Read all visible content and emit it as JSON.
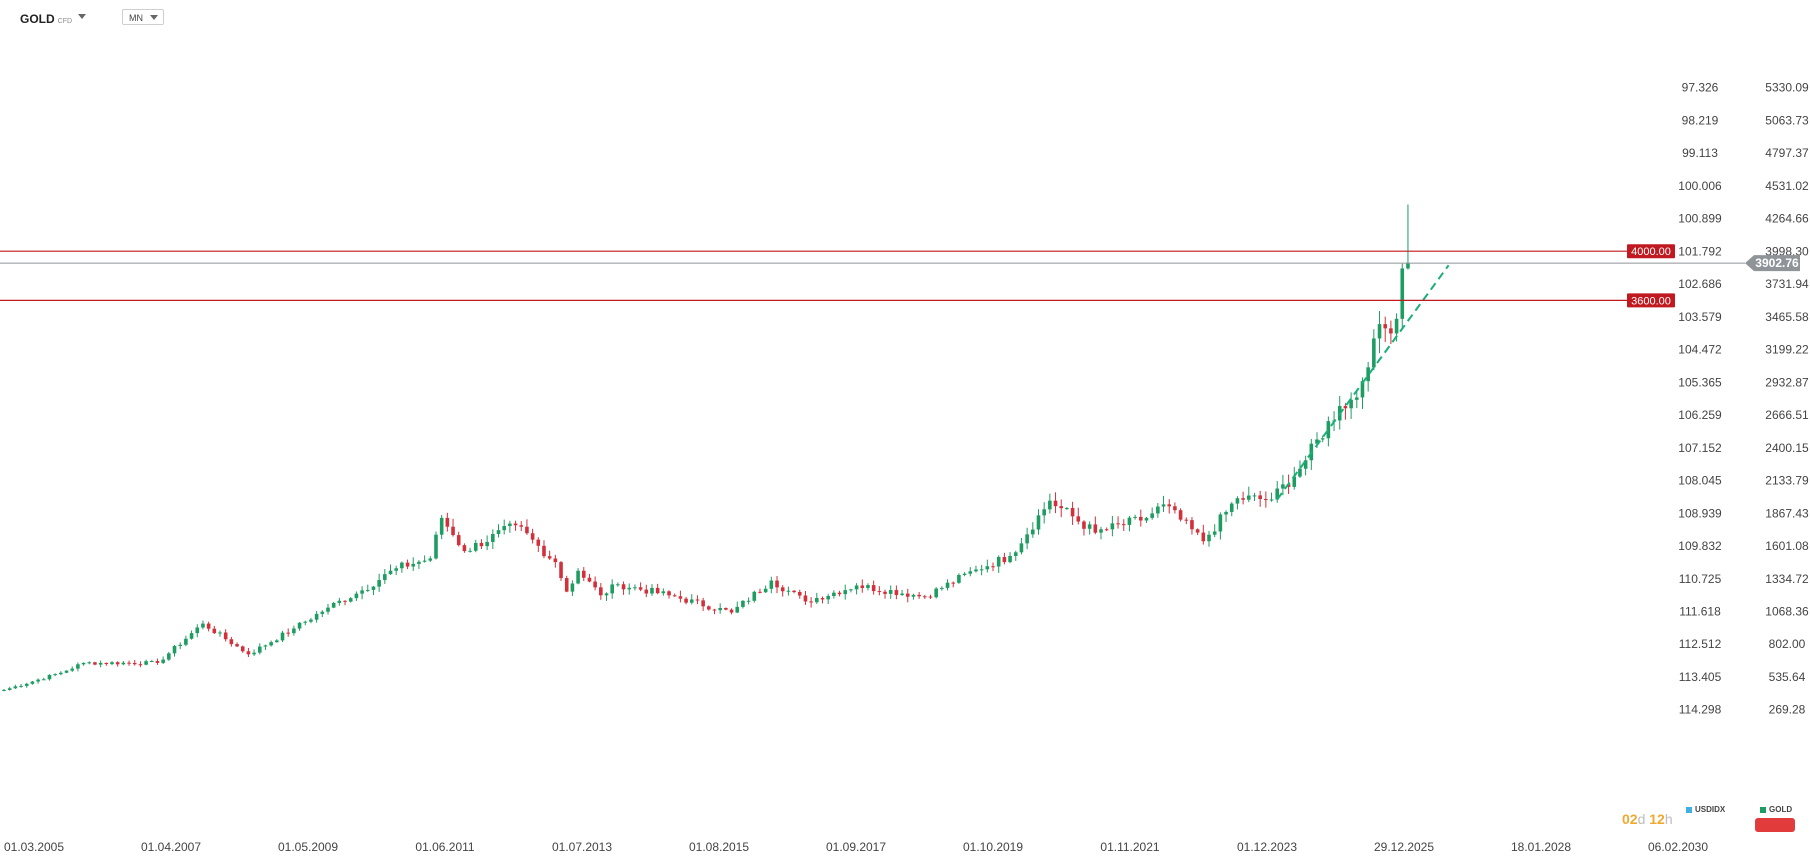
{
  "header": {
    "symbol": "GOLD",
    "symbol_type": "CFD",
    "timeframe": "MN"
  },
  "colors": {
    "up": "#1f9c61",
    "down": "#d0313a",
    "level_line": "#c0191f",
    "price_line": "#8f9499",
    "trend_line": "#1aae78",
    "timer": "#f0a830",
    "usdidx_legend": "#3fb0e6",
    "gold_legend": "#1f9c61",
    "red_button": "#e23b3b"
  },
  "legend": {
    "usdidx": "USDIDX",
    "gold": "GOLD"
  },
  "timer": {
    "days": "02",
    "days_unit": "d",
    "hours": "12",
    "hours_unit": "h"
  },
  "chart_data": {
    "type": "candlestick",
    "timeframe": "monthly",
    "ylim": [
      0,
      5500
    ],
    "right_axis_ticks": [
      "5330.09",
      "5063.73",
      "4797.37",
      "4531.02",
      "4264.66",
      "3998.30",
      "3731.94",
      "3465.58",
      "3199.22",
      "2932.87",
      "2666.51",
      "2400.15",
      "2133.79",
      "1867.43",
      "1601.08",
      "1334.72",
      "1068.36",
      "802.00",
      "535.64",
      "269.28"
    ],
    "left_axis_ticks": [
      "97.326",
      "98.219",
      "99.113",
      "100.006",
      "100.899",
      "101.792",
      "102.686",
      "103.579",
      "104.472",
      "105.365",
      "106.259",
      "107.152",
      "108.045",
      "108.939",
      "109.832",
      "110.725",
      "111.618",
      "112.512",
      "113.405",
      "114.298"
    ],
    "x_ticks": [
      "01.03.2005",
      "01.04.2007",
      "01.05.2009",
      "01.06.2011",
      "01.07.2013",
      "01.08.2015",
      "01.09.2017",
      "01.10.2019",
      "01.11.2021",
      "01.12.2023",
      "29.12.2025",
      "18.01.2028",
      "06.02.2030"
    ],
    "horizontal_levels": [
      {
        "value": 4000,
        "label": "4000.00"
      },
      {
        "value": 3600,
        "label": "3600.00"
      }
    ],
    "current_price": {
      "value": 3902.76,
      "label": "3902.76"
    },
    "trend_line": {
      "from": {
        "date": "2023-11",
        "price": 1980
      },
      "to": {
        "date": "2025-11",
        "price": 3560
      }
    },
    "closes": [
      {
        "date": "2005-03",
        "close": 430
      },
      {
        "date": "2006-01",
        "close": 570
      },
      {
        "date": "2006-05",
        "close": 650
      },
      {
        "date": "2007-06",
        "close": 650
      },
      {
        "date": "2008-02",
        "close": 970
      },
      {
        "date": "2008-10",
        "close": 720
      },
      {
        "date": "2009-06",
        "close": 930
      },
      {
        "date": "2009-12",
        "close": 1100
      },
      {
        "date": "2010-06",
        "close": 1240
      },
      {
        "date": "2010-12",
        "close": 1420
      },
      {
        "date": "2011-06",
        "close": 1500
      },
      {
        "date": "2011-08",
        "close": 1830
      },
      {
        "date": "2011-12",
        "close": 1560
      },
      {
        "date": "2012-09",
        "close": 1770
      },
      {
        "date": "2013-04",
        "close": 1470
      },
      {
        "date": "2013-06",
        "close": 1230
      },
      {
        "date": "2013-08",
        "close": 1400
      },
      {
        "date": "2013-12",
        "close": 1200
      },
      {
        "date": "2014-03",
        "close": 1290
      },
      {
        "date": "2014-12",
        "close": 1200
      },
      {
        "date": "2015-11",
        "close": 1060
      },
      {
        "date": "2016-06",
        "close": 1320
      },
      {
        "date": "2016-12",
        "close": 1150
      },
      {
        "date": "2017-09",
        "close": 1280
      },
      {
        "date": "2018-09",
        "close": 1190
      },
      {
        "date": "2019-06",
        "close": 1410
      },
      {
        "date": "2019-12",
        "close": 1520
      },
      {
        "date": "2020-07",
        "close": 1970
      },
      {
        "date": "2021-03",
        "close": 1710
      },
      {
        "date": "2021-12",
        "close": 1830
      },
      {
        "date": "2022-03",
        "close": 1940
      },
      {
        "date": "2022-10",
        "close": 1640
      },
      {
        "date": "2023-04",
        "close": 1990
      },
      {
        "date": "2023-10",
        "close": 1980
      },
      {
        "date": "2024-03",
        "close": 2230
      },
      {
        "date": "2024-10",
        "close": 2740
      },
      {
        "date": "2025-01",
        "close": 2810
      },
      {
        "date": "2025-04",
        "close": 3290
      },
      {
        "date": "2025-08",
        "close": 3450
      },
      {
        "date": "2025-09",
        "close": 3860
      },
      {
        "date": "2025-10",
        "close": 3902.76
      }
    ],
    "last_candle": {
      "date": "2025-10",
      "open": 3860,
      "high": 4380,
      "low": 3850,
      "close": 3902.76
    }
  }
}
